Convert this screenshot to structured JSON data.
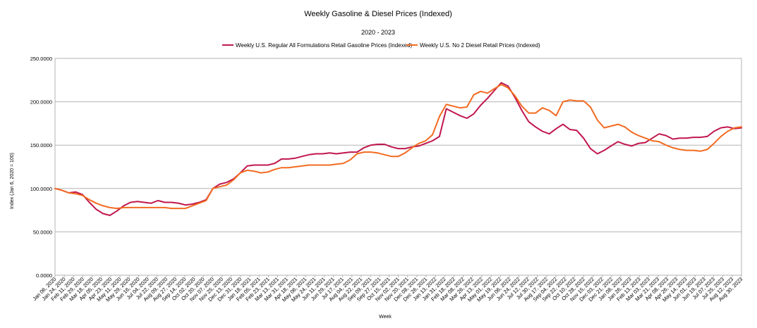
{
  "chart_data": {
    "type": "line",
    "title": "Weekly Gasoline & Diesel Prices (Indexed)",
    "subtitle": "2020 - 2023",
    "xlabel": "Week",
    "ylabel": "Index (Jan 6, 2020 = 100)",
    "ylim": [
      0,
      250
    ],
    "yticks": [
      "0.0000",
      "50.0000",
      "100.0000",
      "150.0000",
      "200.0000",
      "250.0000"
    ],
    "grid": true,
    "legend_position": "top",
    "x_ticks": [
      "Jan 06, 2020",
      "Jan 24, 2020",
      "Feb 11, 2020",
      "Feb 29, 2020",
      "Mar 18, 2020",
      "Apr 05, 2020",
      "Apr 23, 2020",
      "May 11, 2020",
      "May 29, 2020",
      "Jun 16, 2020",
      "Jul 04, 2020",
      "Jul 22, 2020",
      "Aug 09, 2020",
      "Aug 27, 2020",
      "Sep 14, 2020",
      "Oct 02, 2020",
      "Oct 20, 2020",
      "Nov 07, 2020",
      "Nov 25, 2020",
      "Dec 13, 2020",
      "Dec 31, 2020",
      "Jan 18, 2021",
      "Feb 05, 2021",
      "Feb 23, 2021",
      "Mar 13, 2021",
      "Mar 31, 2021",
      "Apr 18, 2021",
      "May 06, 2021",
      "May 24, 2021",
      "Jun 11, 2021",
      "Jun 29, 2021",
      "Jul 17, 2021",
      "Aug 04, 2021",
      "Aug 22, 2021",
      "Sep 09, 2021",
      "Sep 27, 2021",
      "Oct 15, 2021",
      "Nov 02, 2021",
      "Nov 20, 2021",
      "Dec 08, 2021",
      "Dec 26, 2021",
      "Jan 13, 2022",
      "Jan 31, 2022",
      "Feb 18, 2022",
      "Mar 08, 2022",
      "Mar 26, 2022",
      "Apr 13, 2022",
      "May 01, 2022",
      "May 19, 2022",
      "Jun 06, 2022",
      "Jun 24, 2022",
      "Jul 12, 2022",
      "Jul 30, 2022",
      "Aug 17, 2022",
      "Sep 04, 2022",
      "Sep 22, 2022",
      "Oct 10, 2022",
      "Oct 28, 2022",
      "Nov 15, 2022",
      "Dec 03, 2022",
      "Dec 21, 2022",
      "Jan 08, 2023",
      "Jan 26, 2023",
      "Feb 13, 2023",
      "Mar 03, 2023",
      "Mar 21, 2023",
      "Apr 08, 2023",
      "Apr 26, 2023",
      "May 14, 2023",
      "Jun 01, 2023",
      "Jun 19, 2023",
      "Jul 07, 2023",
      "Jul 25, 2023",
      "Aug 12, 2023",
      "Aug 30, 2023"
    ],
    "series": [
      {
        "name": "Weekly U.S. Regular All Formulations Retail Gasoline Prices (Indexed)",
        "color": "#c0174d",
        "values": [
          100,
          98,
          95,
          96,
          93,
          84,
          76,
          71,
          69,
          74,
          80,
          84,
          85,
          84,
          83,
          86,
          84,
          84,
          83,
          81,
          82,
          84,
          87,
          100,
          105,
          107,
          111,
          118,
          126,
          127,
          127,
          127,
          129,
          134,
          134,
          135,
          137,
          139,
          140,
          140,
          141,
          140,
          141,
          142,
          142,
          147,
          150,
          151,
          151,
          148,
          146,
          146,
          148,
          149,
          152,
          155,
          160,
          192,
          188,
          184,
          181,
          186,
          196,
          204,
          213,
          222,
          218,
          205,
          190,
          177,
          171,
          166,
          163,
          169,
          174,
          168,
          167,
          158,
          146,
          140,
          144,
          149,
          154,
          151,
          149,
          152,
          153,
          158,
          163,
          161,
          157,
          158,
          158,
          159,
          159,
          160,
          166,
          170,
          171,
          169,
          170
        ]
      },
      {
        "name": "Weekly U.S. No 2 Diesel Retail Prices (Indexed)",
        "color": "#f26b21",
        "values": [
          100,
          98,
          95,
          94,
          92,
          87,
          83,
          80,
          78,
          77,
          78,
          78,
          78,
          78,
          78,
          78,
          78,
          77,
          77,
          77,
          80,
          83,
          86,
          100,
          102,
          104,
          110,
          118,
          121,
          120,
          118,
          119,
          122,
          124,
          124,
          125,
          126,
          127,
          127,
          127,
          127,
          128,
          129,
          133,
          140,
          142,
          142,
          141,
          139,
          137,
          137,
          141,
          147,
          152,
          155,
          162,
          183,
          197,
          195,
          193,
          194,
          208,
          212,
          210,
          215,
          220,
          216,
          207,
          195,
          187,
          187,
          193,
          190,
          184,
          200,
          202,
          201,
          201,
          194,
          179,
          170,
          172,
          174,
          171,
          165,
          161,
          158,
          155,
          154,
          150,
          147,
          145,
          144,
          144,
          143,
          145,
          152,
          160,
          166,
          170,
          171
        ]
      }
    ]
  }
}
